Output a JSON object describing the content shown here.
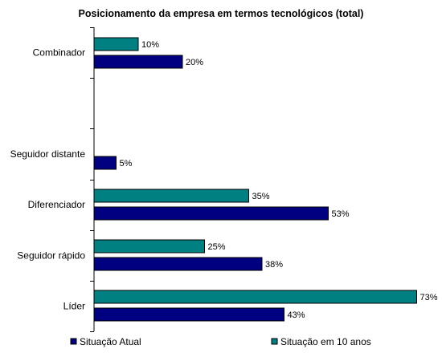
{
  "chart_data": {
    "type": "bar",
    "orientation": "horizontal",
    "title": "Posicionamento da empresa em termos tecnológicos (total)",
    "xlabel": "",
    "ylabel": "",
    "categories": [
      "Combinador",
      "",
      "Seguidor distante",
      "Diferenciador",
      "Seguidor rápido",
      "Líder"
    ],
    "series": [
      {
        "name": "Situação em 10 anos",
        "color": "#008080",
        "values": [
          10,
          null,
          null,
          35,
          25,
          73
        ],
        "labels": [
          "10%",
          "",
          "",
          "35%",
          "25%",
          "73%"
        ]
      },
      {
        "name": "Situação Atual",
        "color": "#000080",
        "values": [
          20,
          null,
          5,
          53,
          38,
          43
        ],
        "labels": [
          "20%",
          "",
          "5%",
          "53%",
          "38%",
          "43%"
        ]
      }
    ],
    "legend_order": [
      1,
      0
    ],
    "legend_position": "bottom",
    "grid": false,
    "xlim": [
      0,
      76
    ]
  }
}
